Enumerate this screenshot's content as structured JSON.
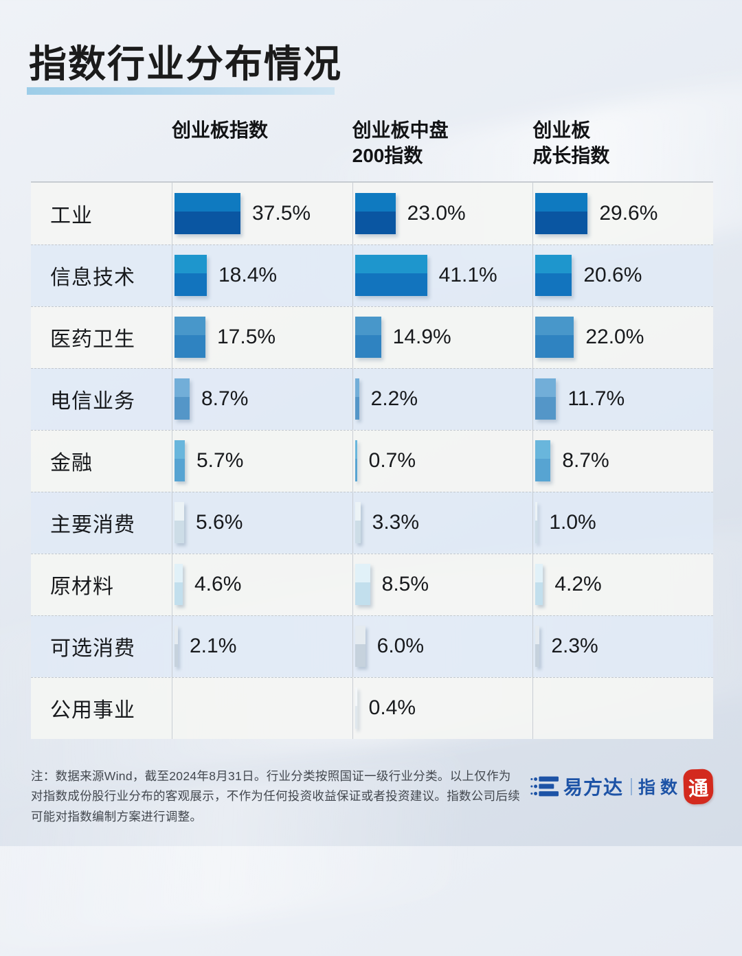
{
  "title": "指数行业分布情况",
  "columns": [
    {
      "line1": "创业板指数",
      "line2": ""
    },
    {
      "line1": "创业板中盘",
      "line2": "200指数"
    },
    {
      "line1": "创业板",
      "line2": "成长指数"
    }
  ],
  "rows": [
    {
      "label": "工业",
      "display": [
        "37.5%",
        "23.0%",
        "29.6%"
      ],
      "values": [
        37.5,
        23.0,
        29.6
      ],
      "bar_top": "#0f7ac0",
      "bar_bottom": "#0a56a2"
    },
    {
      "label": "信息技术",
      "display": [
        "18.4%",
        "41.1%",
        "20.6%"
      ],
      "values": [
        18.4,
        41.1,
        20.6
      ],
      "bar_top": "#1e96cd",
      "bar_bottom": "#1274be"
    },
    {
      "label": "医药卫生",
      "display": [
        "17.5%",
        "14.9%",
        "22.0%"
      ],
      "values": [
        17.5,
        14.9,
        22.0
      ],
      "bar_top": "#4897ca",
      "bar_bottom": "#2f83c1"
    },
    {
      "label": "电信业务",
      "display": [
        "8.7%",
        "2.2%",
        "11.7%"
      ],
      "values": [
        8.7,
        2.2,
        11.7
      ],
      "bar_top": "#72aed8",
      "bar_bottom": "#5496c8"
    },
    {
      "label": "金融",
      "display": [
        "5.7%",
        "0.7%",
        "8.7%"
      ],
      "values": [
        5.7,
        0.7,
        8.7
      ],
      "bar_top": "#69b6dc",
      "bar_bottom": "#57a4d2"
    },
    {
      "label": "主要消费",
      "display": [
        "5.6%",
        "3.3%",
        "1.0%"
      ],
      "values": [
        5.6,
        3.3,
        1.0
      ],
      "bar_top": "#ecf3f6",
      "bar_bottom": "#cddde7"
    },
    {
      "label": "原材料",
      "display": [
        "4.6%",
        "8.5%",
        "4.2%"
      ],
      "values": [
        4.6,
        8.5,
        4.2
      ],
      "bar_top": "#e1f1f8",
      "bar_bottom": "#c2dfed"
    },
    {
      "label": "可选消费",
      "display": [
        "2.1%",
        "6.0%",
        "2.3%"
      ],
      "values": [
        2.1,
        6.0,
        2.3
      ],
      "bar_top": "#e5ebf0",
      "bar_bottom": "#c6d2dd"
    },
    {
      "label": "公用事业",
      "display": [
        null,
        "0.4%",
        null
      ],
      "values": [
        null,
        0.4,
        null
      ],
      "bar_top": "#f4f7f9",
      "bar_bottom": "#dfe7ed"
    }
  ],
  "footnote": "注：数据来源Wind，截至2024年8月31日。行业分类按照国证一级行业分类。以上仅作为对指数成份股行业分布的客观展示，不作为任何投资收益保证或者投资建议。指数公司后续可能对指数编制方案进行调整。",
  "logo": {
    "brand": "易方达",
    "suffix": "指数",
    "seal": "通"
  },
  "accent_colors": {
    "title_underline": "#a9d4ea",
    "brand_blue": "#1d53a6",
    "seal_red": "#d32a1e"
  },
  "chart_data": {
    "type": "bar",
    "orientation": "horizontal",
    "title": "指数行业分布情况",
    "unit": "%",
    "categories": [
      "工业",
      "信息技术",
      "医药卫生",
      "电信业务",
      "金融",
      "主要消费",
      "原材料",
      "可选消费",
      "公用事业"
    ],
    "series": [
      {
        "name": "创业板指数",
        "values": [
          37.5,
          18.4,
          17.5,
          8.7,
          5.7,
          5.6,
          4.6,
          2.1,
          null
        ]
      },
      {
        "name": "创业板中盘200指数",
        "values": [
          23.0,
          41.1,
          14.9,
          2.2,
          0.7,
          3.3,
          8.5,
          6.0,
          0.4
        ]
      },
      {
        "name": "创业板成长指数",
        "values": [
          29.6,
          20.6,
          22.0,
          11.7,
          8.7,
          1.0,
          4.2,
          2.3,
          null
        ]
      }
    ],
    "value_labels_shown": true,
    "source_note": "数据来源Wind，截至2024年8月31日"
  }
}
